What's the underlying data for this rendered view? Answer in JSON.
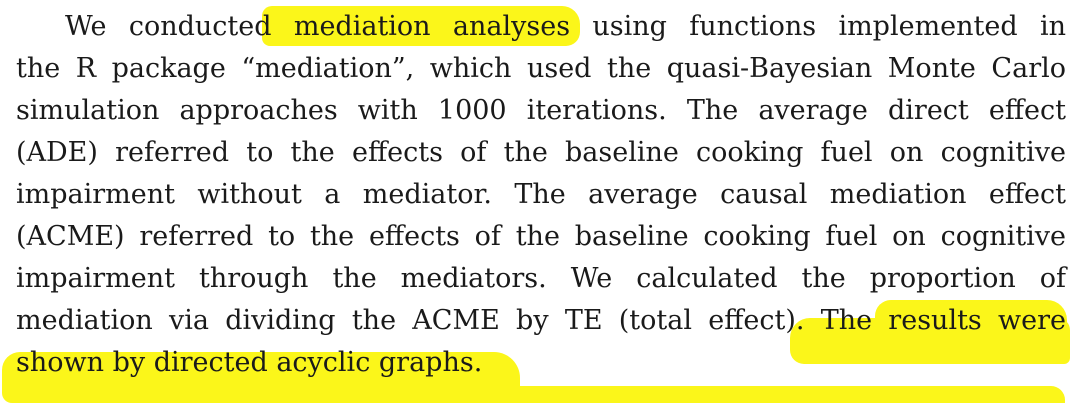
{
  "document": {
    "paragraph_lines": [
      "We conducted mediation analyses using functions implemented in",
      "the R package “mediation”, which used the quasi-Bayesian Monte Carlo",
      "simulation approaches with 1000 iterations. The average direct effect",
      "(ADE) referred to the effects of the baseline cooking fuel on cognitive",
      "impairment without a mediator. The average causal mediation effect",
      "(ACME) referred to the effects of the baseline cooking fuel on cognitive",
      "impairment through the mediators. We calculated the proportion of",
      "mediation via dividing the ACME by TE (total effect). The results were",
      "shown by directed acyclic graphs."
    ],
    "highlighted_phrases": [
      "mediation analyses",
      "The results were shown by directed acyclic graphs."
    ],
    "highlight_color": "#fbf61a",
    "text_color": "#1a1a1a"
  }
}
